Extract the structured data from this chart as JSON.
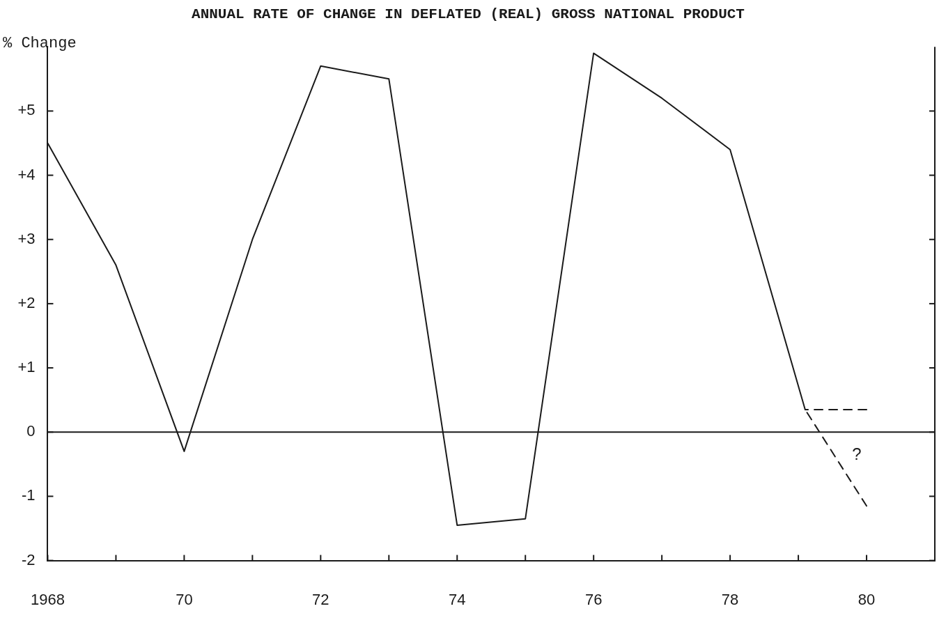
{
  "chart_data": {
    "type": "line",
    "title": "ANNUAL RATE OF CHANGE IN DEFLATED (REAL) GROSS NATIONAL PRODUCT",
    "ylabel": "% Change",
    "series": [
      {
        "color": "#1a1a1a",
        "x": [
          1968,
          1969,
          1970,
          1971,
          1972,
          1973,
          1974,
          1975,
          1976,
          1977,
          1978,
          1979.1
        ],
        "values": [
          4.5,
          2.6,
          -0.3,
          3.0,
          5.7,
          5.5,
          -1.45,
          -1.35,
          5.9,
          5.2,
          4.4,
          0.35
        ]
      },
      {
        "color": "#1a1a1a",
        "line_style": "dashed",
        "x": [
          1980,
          1979.1
        ],
        "values": [
          0.35,
          0.35
        ]
      },
      {
        "color": "#1a1a1a",
        "line_style": "dashed",
        "x": [
          1980,
          1979.1
        ],
        "values": [
          -1.15,
          0.35
        ]
      }
    ],
    "xlim": [
      1968,
      1981
    ],
    "xticks": [
      1968,
      {
        "value": 1969,
        "label": null
      },
      {
        "value": 1970,
        "label": "70"
      },
      {
        "value": 1971,
        "label": null
      },
      {
        "value": 1972,
        "label": "72"
      },
      {
        "value": 1973,
        "label": null
      },
      {
        "value": 1974,
        "label": "74"
      },
      {
        "value": 1975,
        "label": null
      },
      {
        "value": 1976,
        "label": "76"
      },
      {
        "value": 1977,
        "label": null
      },
      {
        "value": 1978,
        "label": "78"
      },
      {
        "value": 1979,
        "label": null
      },
      {
        "value": 1980,
        "label": "80"
      }
    ],
    "ylim": [
      -2,
      6
    ],
    "yticks": [
      -2,
      -1,
      0,
      {
        "value": 1,
        "label": "+1"
      },
      {
        "value": 2,
        "label": "+2"
      },
      {
        "value": 3,
        "label": "+3"
      },
      {
        "value": 4,
        "label": "+4"
      },
      {
        "value": 5,
        "label": "+5"
      }
    ],
    "ref_lines": [
      {
        "axis": "y",
        "value": 0,
        "color": "#1a1a1a"
      }
    ],
    "annotations": [
      "?"
    ],
    "grid": false,
    "legend": false,
    "marker": "none",
    "line_style": "solid"
  }
}
